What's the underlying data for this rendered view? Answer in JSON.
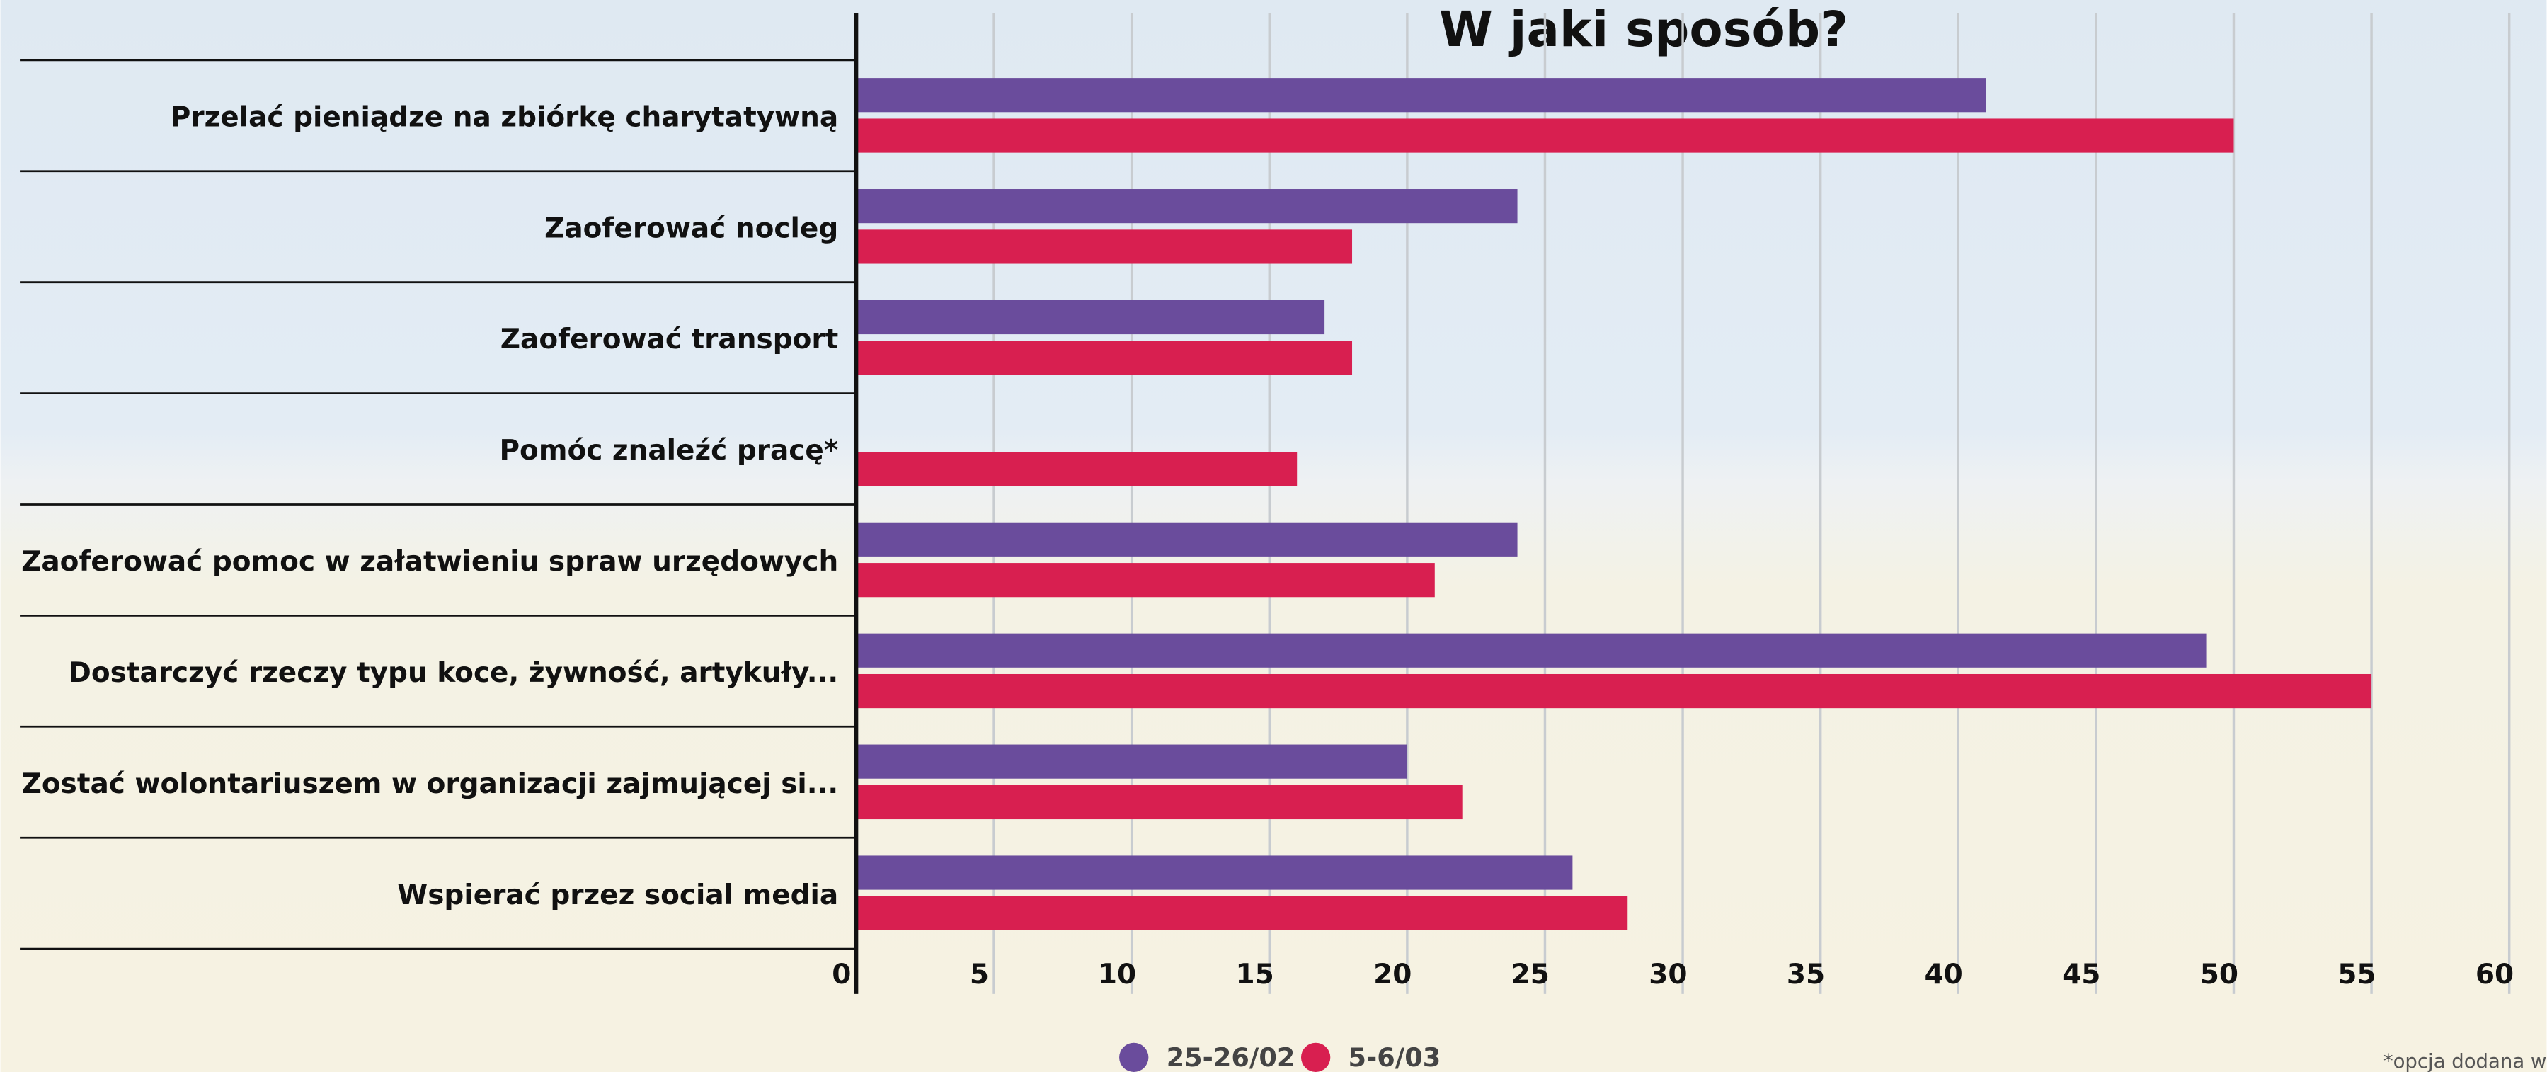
{
  "chart_data": {
    "type": "bar",
    "orientation": "horizontal",
    "title": "W jaki sposób?",
    "categories": [
      "Przelać pieniądze na zbiórkę charytatywną",
      "Zaoferować nocleg",
      "Zaoferować transport",
      "Pomóc znaleźć pracę*",
      "Zaoferować pomoc w załatwieniu spraw urzędowych",
      "Dostarczyć rzeczy typu koce, żywność, artykuły...",
      "Zostać wolontariuszem w organizacji zajmującej si...",
      "Wspierać przez social media"
    ],
    "series": [
      {
        "name": "25-26/02",
        "color": "#6a4c9c",
        "values": [
          41,
          24,
          17,
          null,
          24,
          49,
          20,
          26
        ]
      },
      {
        "name": "5-6/03",
        "color": "#d81f50",
        "values": [
          50,
          18,
          18,
          16,
          21,
          55,
          22,
          28
        ]
      }
    ],
    "xlim": [
      0,
      60
    ],
    "xticks": [
      0,
      5,
      10,
      15,
      20,
      25,
      30,
      35,
      40,
      45,
      50,
      55,
      60
    ],
    "grid": true,
    "legend": "bottom",
    "footnote": "*opcja dodana w"
  }
}
